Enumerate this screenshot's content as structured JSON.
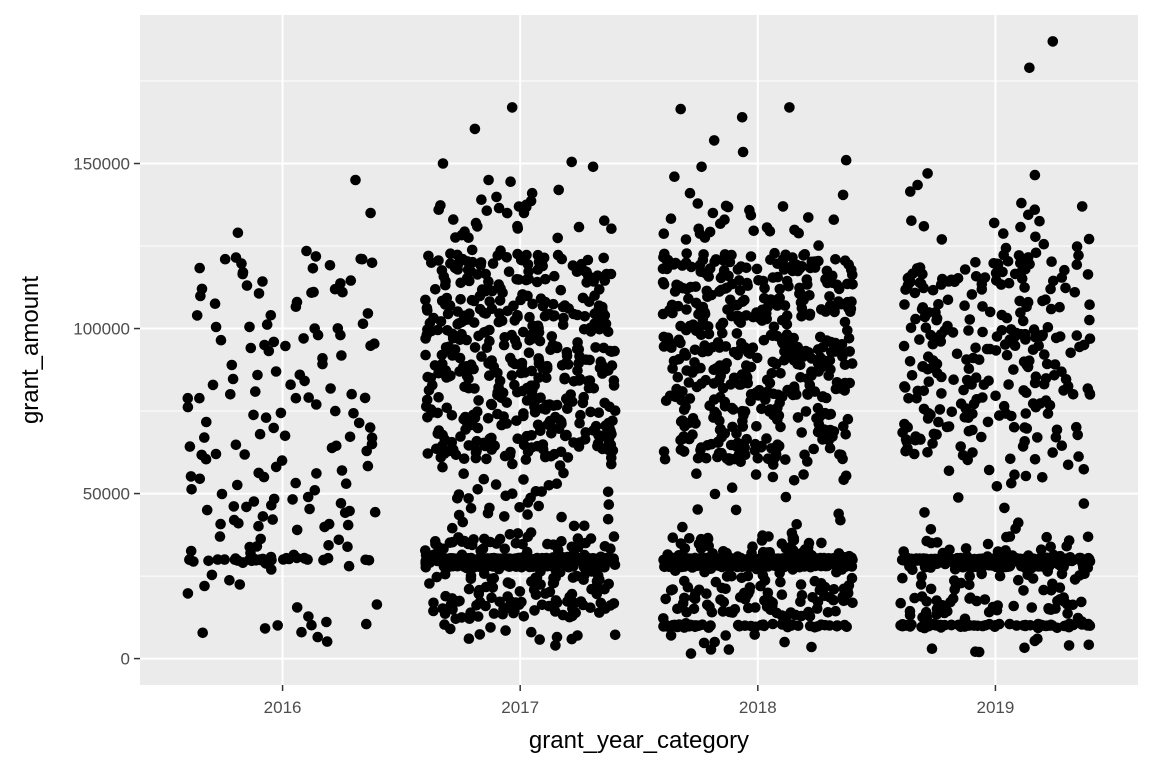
{
  "chart_data": {
    "type": "scatter",
    "title": "",
    "xlabel": "grant_year_category",
    "ylabel": "grant_amount",
    "categories": [
      "2016",
      "2017",
      "2018",
      "2019"
    ],
    "y_ticks": [
      0,
      50000,
      100000,
      150000
    ],
    "y_tick_labels": [
      "0",
      "50000",
      "100000",
      "150000"
    ],
    "ylim": [
      -8000,
      195000
    ],
    "grid": true,
    "legend": "none",
    "jitter_width": 0.4,
    "point_color": "#000000",
    "panel_color": "#ebebeb",
    "groups": [
      {
        "category": "2016",
        "n_points": 200,
        "notable_values": [
          145000,
          135000,
          129000,
          123500,
          121500,
          121000,
          117000,
          116500,
          113000,
          112000,
          111000,
          108000,
          104000,
          100000,
          98000,
          97000,
          95000,
          91000,
          87000,
          86000,
          83000,
          79000,
          77000,
          75000,
          73000,
          70000,
          68000,
          65000,
          62000,
          60000,
          57000,
          55000,
          53000,
          51000,
          45000,
          41000,
          39000,
          36000,
          34000,
          32000,
          30000,
          30000,
          30000,
          30000,
          29000,
          28000,
          27000,
          22000,
          6500
        ],
        "levels": [
          {
            "value": 30000,
            "share": 0.15
          }
        ],
        "range": [
          5000,
          122000
        ],
        "share_range": 0.85
      },
      {
        "category": "2017",
        "n_points": 1100,
        "notable_values": [
          167000,
          160500,
          150500,
          150000,
          149000,
          145000,
          144500,
          142000,
          141000,
          137500,
          136000,
          135000,
          133000,
          131000,
          4000,
          7000,
          8000,
          9000
        ],
        "levels": [
          {
            "value": 30000,
            "share": 0.3
          },
          {
            "value": 28000,
            "share": 0.05
          }
        ],
        "range": [
          4000,
          140000
        ],
        "share_range": 0.65
      },
      {
        "category": "2018",
        "n_points": 1150,
        "notable_values": [
          167000,
          166500,
          164000,
          157000,
          153500,
          151000,
          149000,
          146000,
          141000,
          140500,
          137000,
          135000,
          1500,
          3500,
          5000,
          7000
        ],
        "levels": [
          {
            "value": 30000,
            "share": 0.3
          },
          {
            "value": 28000,
            "share": 0.05
          },
          {
            "value": 10000,
            "share": 0.05
          }
        ],
        "range": [
          2000,
          138000
        ],
        "share_range": 0.6
      },
      {
        "category": "2019",
        "n_points": 750,
        "notable_values": [
          187000,
          179000,
          147000,
          146500,
          143500,
          141500,
          138000,
          137000,
          136000,
          132000,
          2000,
          3000,
          4000,
          6000
        ],
        "levels": [
          {
            "value": 30000,
            "share": 0.3
          },
          {
            "value": 28000,
            "share": 0.05
          },
          {
            "value": 10000,
            "share": 0.08
          }
        ],
        "range": [
          2000,
          135000
        ],
        "share_range": 0.57
      }
    ]
  }
}
